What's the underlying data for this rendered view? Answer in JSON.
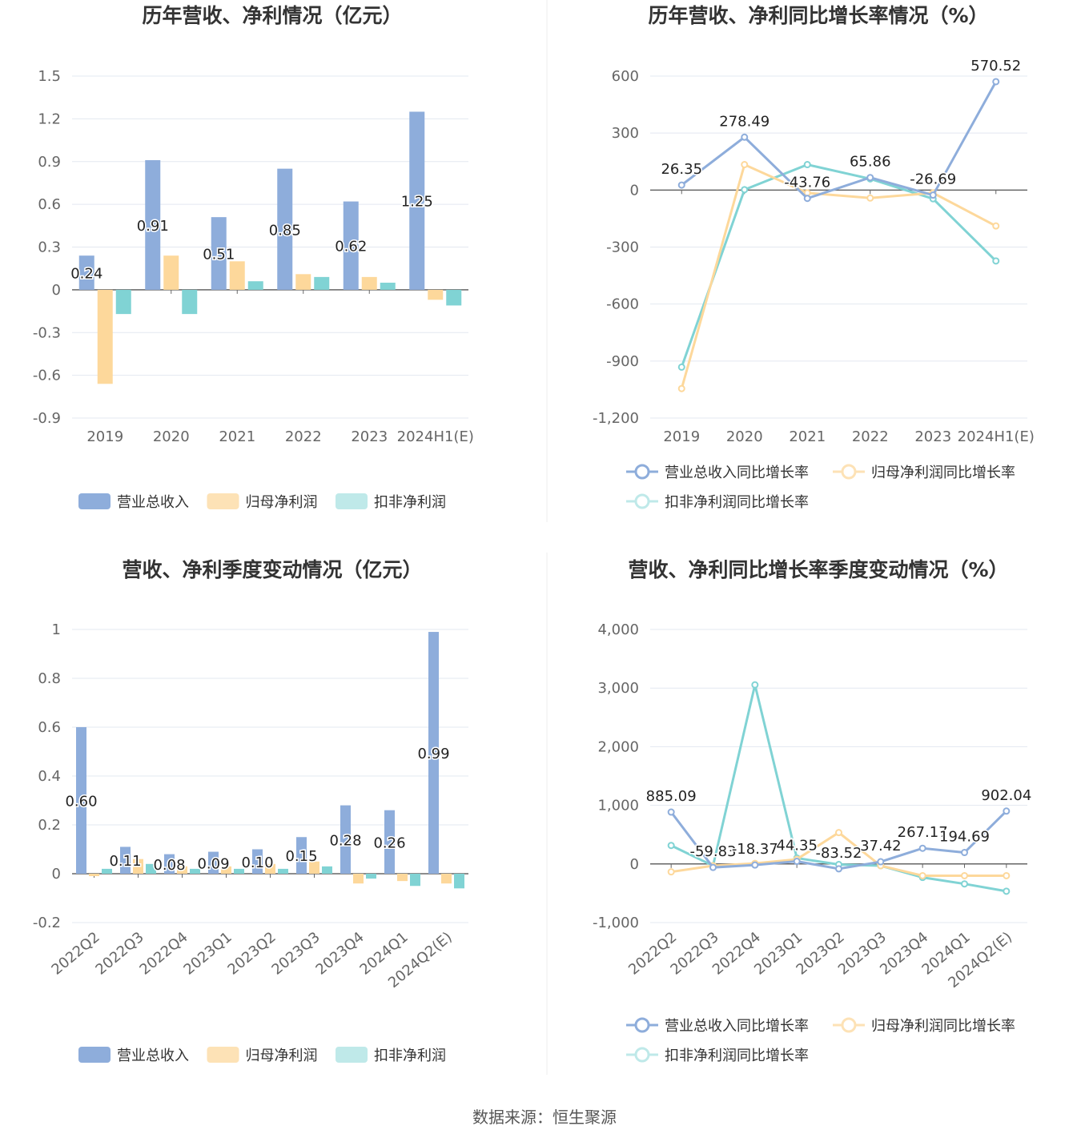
{
  "source": "数据来源：恒生聚源",
  "colors": {
    "revenue": "#8eaddb",
    "net_profit": "#fdd89b",
    "deducted_profit": "#80d3d4",
    "grid": "#e3e8f0",
    "axis": "#666666"
  },
  "chart_data": [
    {
      "type": "bar",
      "title": "历年营收、净利情况（亿元）",
      "categories": [
        "2019",
        "2020",
        "2021",
        "2022",
        "2023",
        "2024H1(E)"
      ],
      "ylim": [
        -0.9,
        1.5
      ],
      "yticks": [
        -0.9,
        -0.6,
        -0.3,
        0,
        0.3,
        0.6,
        0.9,
        1.2,
        1.5
      ],
      "ytick_labels": [
        "-0.9",
        "-0.6",
        "-0.3",
        "0",
        "0.3",
        "0.6",
        "0.9",
        "1.2",
        "1.5"
      ],
      "grid": true,
      "legend": "bottom",
      "series": [
        {
          "name": "营业总收入",
          "values": [
            0.24,
            0.91,
            0.51,
            0.85,
            0.62,
            1.25
          ],
          "labels": [
            "0.24",
            "0.91",
            "0.51",
            "0.85",
            "0.62",
            "1.25"
          ]
        },
        {
          "name": "归母净利润",
          "values": [
            -0.66,
            0.24,
            0.2,
            0.11,
            0.09,
            -0.07
          ]
        },
        {
          "name": "扣非净利润",
          "values": [
            -0.17,
            -0.17,
            0.06,
            0.09,
            0.05,
            -0.11
          ]
        }
      ]
    },
    {
      "type": "line",
      "title": "历年营收、净利同比增长率情况（%）",
      "categories": [
        "2019",
        "2020",
        "2021",
        "2022",
        "2023",
        "2024H1(E)"
      ],
      "ylim": [
        -1200,
        600
      ],
      "yticks": [
        -1200,
        -900,
        -600,
        -300,
        0,
        300,
        600
      ],
      "ytick_labels": [
        "-1,200",
        "-900",
        "-600",
        "-300",
        "0",
        "300",
        "600"
      ],
      "grid": true,
      "legend": "bottom",
      "series": [
        {
          "name": "营业总收入同比增长率",
          "values": [
            26.35,
            278.49,
            -43.76,
            65.86,
            -26.69,
            570.52
          ],
          "labels": [
            "26.35",
            "278.49",
            "-43.76",
            "65.86",
            "-26.69",
            "570.52"
          ]
        },
        {
          "name": "归母净利润同比增长率",
          "values": [
            -1045,
            134,
            -15,
            -42,
            -15,
            -189
          ]
        },
        {
          "name": "扣非净利润同比增长率",
          "values": [
            -932,
            2,
            134,
            59,
            -46,
            -373
          ]
        }
      ]
    },
    {
      "type": "bar",
      "title": "营收、净利季度变动情况（亿元）",
      "categories": [
        "2022Q2",
        "2022Q3",
        "2022Q4",
        "2023Q1",
        "2023Q2",
        "2023Q3",
        "2023Q4",
        "2024Q1",
        "2024Q2(E)"
      ],
      "ylim": [
        -0.2,
        1
      ],
      "yticks": [
        -0.2,
        0,
        0.2,
        0.4,
        0.6,
        0.8,
        1
      ],
      "ytick_labels": [
        "-0.2",
        "0",
        "0.2",
        "0.4",
        "0.6",
        "0.8",
        "1"
      ],
      "grid": true,
      "legend": "bottom",
      "series": [
        {
          "name": "营业总收入",
          "values": [
            0.6,
            0.11,
            0.08,
            0.09,
            0.1,
            0.15,
            0.28,
            0.26,
            0.99
          ],
          "labels": [
            "0.60",
            "0.11",
            "0.08",
            "0.09",
            "0.10",
            "0.15",
            "0.28",
            "0.26",
            "0.99"
          ]
        },
        {
          "name": "归母净利润",
          "values": [
            -0.01,
            0.06,
            0.03,
            0.03,
            0.04,
            0.05,
            -0.04,
            -0.03,
            -0.04
          ]
        },
        {
          "name": "扣非净利润",
          "values": [
            0.02,
            0.04,
            0.02,
            0.02,
            0.02,
            0.03,
            -0.02,
            -0.05,
            -0.06
          ]
        }
      ]
    },
    {
      "type": "line",
      "title": "营收、净利同比增长率季度变动情况（%）",
      "categories": [
        "2022Q2",
        "2022Q3",
        "2022Q4",
        "2023Q1",
        "2023Q2",
        "2023Q3",
        "2023Q4",
        "2024Q1",
        "2024Q2(E)"
      ],
      "ylim": [
        -1000,
        4000
      ],
      "yticks": [
        -1000,
        0,
        1000,
        2000,
        3000,
        4000
      ],
      "ytick_labels": [
        "-1,000",
        "0",
        "1,000",
        "2,000",
        "3,000",
        "4,000"
      ],
      "grid": true,
      "legend": "bottom",
      "series": [
        {
          "name": "营业总收入同比增长率",
          "values": [
            885.09,
            -59.83,
            -18.37,
            44.35,
            -83.52,
            37.42,
            267.17,
            194.69,
            902.04
          ],
          "labels": [
            "885.09",
            "-59.83",
            "-18.37",
            "44.35",
            "-83.52",
            "37.42",
            "267.17",
            "194.69",
            "902.04"
          ]
        },
        {
          "name": "归母净利润同比增长率",
          "values": [
            -135,
            -30,
            10,
            80,
            535,
            -30,
            -200,
            -200,
            -200
          ]
        },
        {
          "name": "扣非净利润同比增长率",
          "values": [
            315,
            -30,
            3055,
            100,
            -10,
            -30,
            -230,
            -340,
            -465
          ]
        }
      ]
    }
  ]
}
